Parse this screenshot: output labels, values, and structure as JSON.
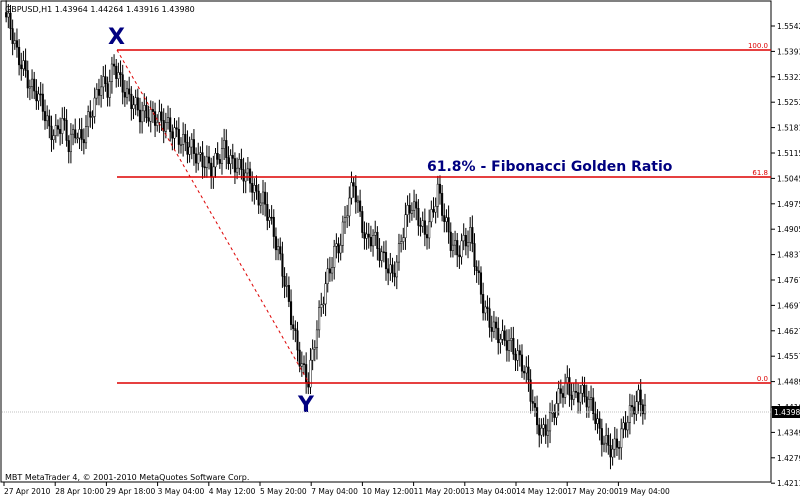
{
  "header": {
    "symbol_info": "GBPUSD,H1  1.43964 1.44264 1.43916 1.43980"
  },
  "footer": {
    "copyright": "MBT MetaTrader 4, © 2001-2010 MetaQuotes Software Corp."
  },
  "annotations": {
    "point_x": "X",
    "point_y": "Y",
    "golden_ratio": "61.8% - Fibonacci Golden Ratio"
  },
  "colors": {
    "fib_line": "#dd0000",
    "candles": "#000000",
    "annotation": "#000080",
    "price_box_bg": "#000000",
    "price_box_text": "#ffffff",
    "grid": "#c0c0c0"
  },
  "chart_data": {
    "type": "candlestick",
    "symbol": "GBPUSD",
    "timeframe": "H1",
    "ohlc_header": {
      "open": 1.43964,
      "high": 1.44264,
      "low": 1.43916,
      "close": 1.4398
    },
    "ylim": [
      1.419,
      1.557
    ],
    "y_ticks": [
      "1.55420",
      "1.53930",
      "1.53230",
      "1.52530",
      "1.51810",
      "1.51150",
      "1.50450",
      "1.49750",
      "1.49050",
      "1.48370",
      "1.47670",
      "1.46970",
      "1.46270",
      "1.45570",
      "1.44890",
      "1.44190",
      "1.43490",
      "1.42790",
      "1.42110"
    ],
    "x_ticks": [
      "27 Apr 2010",
      "28 Apr 10:00",
      "29 Apr 18:00",
      "3 May 04:00",
      "4 May 12:00",
      "5 May 20:00",
      "7 May 04:00",
      "10 May 12:00",
      "11 May 20:00",
      "13 May 04:00",
      "14 May 12:00",
      "17 May 20:00",
      "19 May 04:00"
    ],
    "current_price": "1.43980",
    "fib_levels": [
      {
        "label": "100.0",
        "price": 1.5393
      },
      {
        "label": "61.8",
        "price": 1.5045
      },
      {
        "label": "0.0",
        "price": 1.4478
      }
    ],
    "close_series": [
      1.554,
      1.55,
      1.542,
      1.538,
      1.533,
      1.531,
      1.527,
      1.52,
      1.519,
      1.523,
      1.516,
      1.52,
      1.517,
      1.523,
      1.528,
      1.534,
      1.532,
      1.539,
      1.534,
      1.53,
      1.528,
      1.525,
      1.525,
      1.524,
      1.523,
      1.522,
      1.52,
      1.518,
      1.516,
      1.515,
      1.512,
      1.511,
      1.509,
      1.512,
      1.515,
      1.511,
      1.51,
      1.508,
      1.506,
      1.501,
      1.5,
      1.495,
      1.488,
      1.48,
      1.47,
      1.46,
      1.452,
      1.448,
      1.46,
      1.47,
      1.478,
      1.485,
      1.488,
      1.498,
      1.505,
      1.495,
      1.488,
      1.49,
      1.485,
      1.482,
      1.478,
      1.485,
      1.495,
      1.499,
      1.495,
      1.49,
      1.495,
      1.503,
      1.495,
      1.488,
      1.485,
      1.488,
      1.49,
      1.48,
      1.47,
      1.465,
      1.462,
      1.46,
      1.459,
      1.456,
      1.453,
      1.448,
      1.438,
      1.433,
      1.435,
      1.44,
      1.445,
      1.447,
      1.443,
      1.445,
      1.443,
      1.44,
      1.433,
      1.43,
      1.428,
      1.431,
      1.436,
      1.44,
      1.443,
      1.4398
    ],
    "plot_area": "main"
  }
}
